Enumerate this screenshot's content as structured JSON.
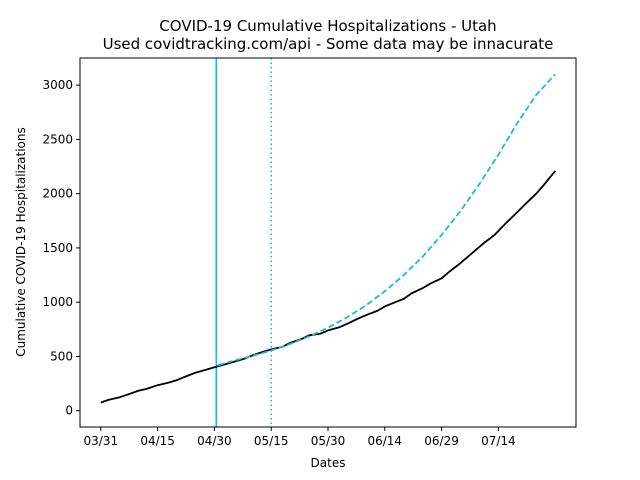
{
  "chart_data": {
    "type": "line",
    "title": "COVID-19 Cumulative Hospitalizations - Utah",
    "subtitle": "Used covidtracking.com/api - Some data may be innacurate",
    "xlabel": "Dates",
    "ylabel": "Cumulative COVID-19 Hospitalizations",
    "x_tick_labels": [
      "03/31",
      "04/15",
      "04/30",
      "05/15",
      "05/30",
      "06/14",
      "06/29",
      "07/14"
    ],
    "y_tick_labels": [
      "0",
      "500",
      "1000",
      "1500",
      "2000",
      "2500",
      "3000"
    ],
    "ylim": [
      -150,
      3250
    ],
    "x_range_days": [
      -5.5,
      125.5
    ],
    "x_ticks_days": [
      0,
      15,
      30,
      45,
      60,
      75,
      90,
      105
    ],
    "y_ticks": [
      0,
      500,
      1000,
      1500,
      2000,
      2500,
      3000
    ],
    "grid": false,
    "series": [
      {
        "color": "#000000",
        "style": "solid",
        "x_days": [
          0,
          2,
          5,
          8,
          10,
          12,
          15,
          18,
          20,
          22,
          25,
          28,
          30,
          33,
          35,
          38,
          40,
          43,
          45,
          48,
          50,
          53,
          55,
          58,
          60,
          63,
          65,
          68,
          70,
          73,
          75,
          77,
          80,
          82,
          85,
          87,
          90,
          92,
          95,
          97,
          99,
          101,
          104,
          107,
          110,
          112,
          115,
          117,
          120
        ],
        "values": [
          75,
          100,
          125,
          160,
          185,
          200,
          235,
          260,
          280,
          310,
          350,
          380,
          400,
          430,
          450,
          480,
          510,
          545,
          565,
          590,
          625,
          660,
          695,
          710,
          740,
          770,
          800,
          850,
          880,
          920,
          960,
          990,
          1030,
          1080,
          1130,
          1170,
          1220,
          1280,
          1360,
          1420,
          1480,
          1540,
          1620,
          1730,
          1830,
          1900,
          2000,
          2080,
          2210
        ]
      },
      {
        "color": "#17becf",
        "style": "dashed",
        "x_days": [
          31,
          35,
          40,
          45,
          50,
          55,
          60,
          65,
          70,
          75,
          80,
          85,
          90,
          95,
          100,
          105,
          110,
          115,
          120
        ],
        "values": [
          420,
          460,
          505,
          555,
          615,
          685,
          765,
          860,
          970,
          1100,
          1250,
          1420,
          1620,
          1840,
          2090,
          2360,
          2650,
          2910,
          3100
        ]
      }
    ],
    "vertical_lines": [
      {
        "x_days": 30.5,
        "color": "#00bfff",
        "style": "solid"
      },
      {
        "x_days": 45,
        "color": "#17becf",
        "style": "dotted"
      }
    ]
  }
}
